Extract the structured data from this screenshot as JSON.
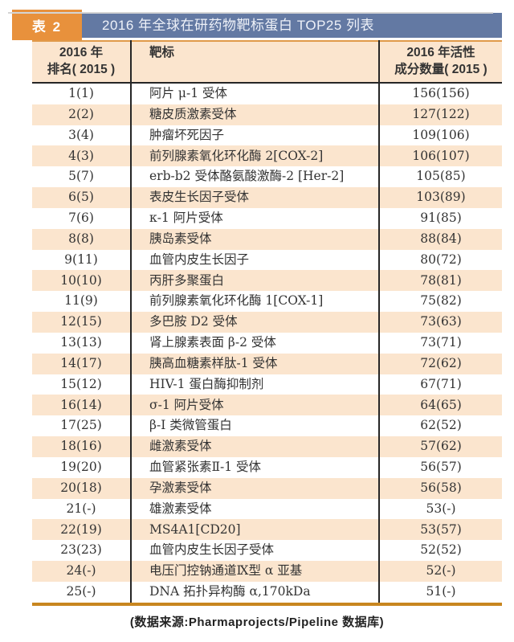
{
  "page": {
    "table_label": "表 2",
    "title": "2016 年全球在研药物靶标蛋白 TOP25 列表",
    "source_note": "(数据来源:Pharmaprojects/Pipeline 数据库)"
  },
  "colors": {
    "accent_orange": "#e8913c",
    "title_blue": "#6379a3",
    "stripe_peach": "#fbe5ce",
    "header_rule_orange": "#e09a4a",
    "dark_rule": "#262626",
    "bottom_rule_orange": "#c8861f",
    "top_rule_gray": "#d4d4d4",
    "text_color": "#333333"
  },
  "table": {
    "headers": {
      "rank_line1": "2016 年",
      "rank_line2": "排名( 2015 )",
      "target": "靶标",
      "count_line1": "2016 年活性",
      "count_line2": "成分数量( 2015 )"
    },
    "rows": [
      {
        "rank": "1(1)",
        "target": "阿片 μ-1 受体",
        "count": "156(156)"
      },
      {
        "rank": "2(2)",
        "target": "糖皮质激素受体",
        "count": "127(122)"
      },
      {
        "rank": "3(4)",
        "target": "肿瘤坏死因子",
        "count": "109(106)"
      },
      {
        "rank": "4(3)",
        "target": "前列腺素氧化环化酶 2[COX-2]",
        "count": "106(107)"
      },
      {
        "rank": "5(7)",
        "target": "erb-b2 受体酪氨酸激酶-2 [Her-2]",
        "count": "105(85)"
      },
      {
        "rank": "6(5)",
        "target": "表皮生长因子受体",
        "count": "103(89)"
      },
      {
        "rank": "7(6)",
        "target": "κ-1 阿片受体",
        "count": "91(85)"
      },
      {
        "rank": "8(8)",
        "target": "胰岛素受体",
        "count": "88(84)"
      },
      {
        "rank": "9(11)",
        "target": "血管内皮生长因子",
        "count": "80(72)"
      },
      {
        "rank": "10(10)",
        "target": "丙肝多聚蛋白",
        "count": "78(81)"
      },
      {
        "rank": "11(9)",
        "target": "前列腺素氧化环化酶 1[COX-1]",
        "count": "75(82)"
      },
      {
        "rank": "12(15)",
        "target": "多巴胺 D2 受体",
        "count": "73(63)"
      },
      {
        "rank": "13(13)",
        "target": "肾上腺素表面 β-2 受体",
        "count": "73(71)"
      },
      {
        "rank": "14(17)",
        "target": "胰高血糖素样肽-1 受体",
        "count": "72(62)"
      },
      {
        "rank": "15(12)",
        "target": "HIV-1 蛋白酶抑制剂",
        "count": "67(71)"
      },
      {
        "rank": "16(14)",
        "target": "σ-1 阿片受体",
        "count": "64(65)"
      },
      {
        "rank": "17(25)",
        "target": "β-I 类微管蛋白",
        "count": "62(52)"
      },
      {
        "rank": "18(16)",
        "target": "雌激素受体",
        "count": "57(62)"
      },
      {
        "rank": "19(20)",
        "target": "血管紧张素Ⅱ-1 受体",
        "count": "56(57)"
      },
      {
        "rank": "20(18)",
        "target": "孕激素受体",
        "count": "56(58)"
      },
      {
        "rank": "21(-)",
        "target": "雄激素受体",
        "count": "53(-)"
      },
      {
        "rank": "22(19)",
        "target": "MS4A1[CD20]",
        "count": "53(57)"
      },
      {
        "rank": "23(23)",
        "target": "血管内皮生长因子受体",
        "count": "52(52)"
      },
      {
        "rank": "24(-)",
        "target": "电压门控钠通道Ⅸ型 α 亚基",
        "count": "52(-)"
      },
      {
        "rank": "25(-)",
        "target": "DNA 拓扑异构酶 α,170kDa",
        "count": "51(-)"
      }
    ]
  }
}
